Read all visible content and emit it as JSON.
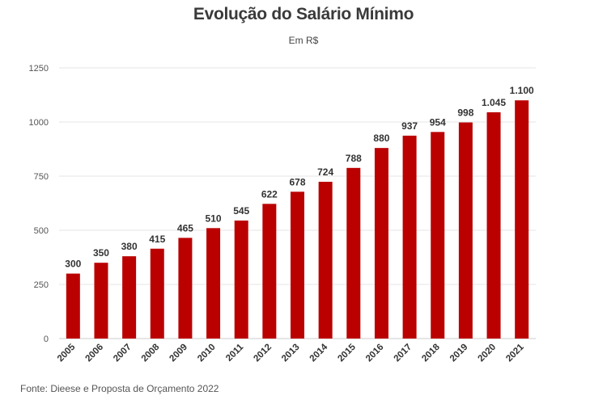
{
  "chart_data": {
    "type": "bar",
    "title": "Evolução do Salário Mínimo",
    "subtitle": "Em R$",
    "source": "Fonte: Dieese e Proposta de Orçamento 2022",
    "categories": [
      "2005",
      "2006",
      "2007",
      "2008",
      "2009",
      "2010",
      "2011",
      "2012",
      "2013",
      "2014",
      "2015",
      "2016",
      "2017",
      "2018",
      "2019",
      "2020",
      "2021"
    ],
    "values": [
      300,
      350,
      380,
      415,
      465,
      510,
      545,
      622,
      678,
      724,
      788,
      880,
      937,
      954,
      998,
      1045,
      1100
    ],
    "data_labels": [
      "300",
      "350",
      "380",
      "415",
      "465",
      "510",
      "545",
      "622",
      "678",
      "724",
      "788",
      "880",
      "937",
      "954",
      "998",
      "1.045",
      "1.100"
    ],
    "ylim": [
      0,
      1250
    ],
    "yticks": [
      0,
      250,
      500,
      750,
      1000,
      1250
    ],
    "ytick_labels": [
      "0",
      "250",
      "500",
      "750",
      "1000",
      "1250"
    ],
    "xlabel": "",
    "ylabel": "",
    "grid": true,
    "bar_color": "#bb0000",
    "grid_color": "#e6e6e6"
  }
}
